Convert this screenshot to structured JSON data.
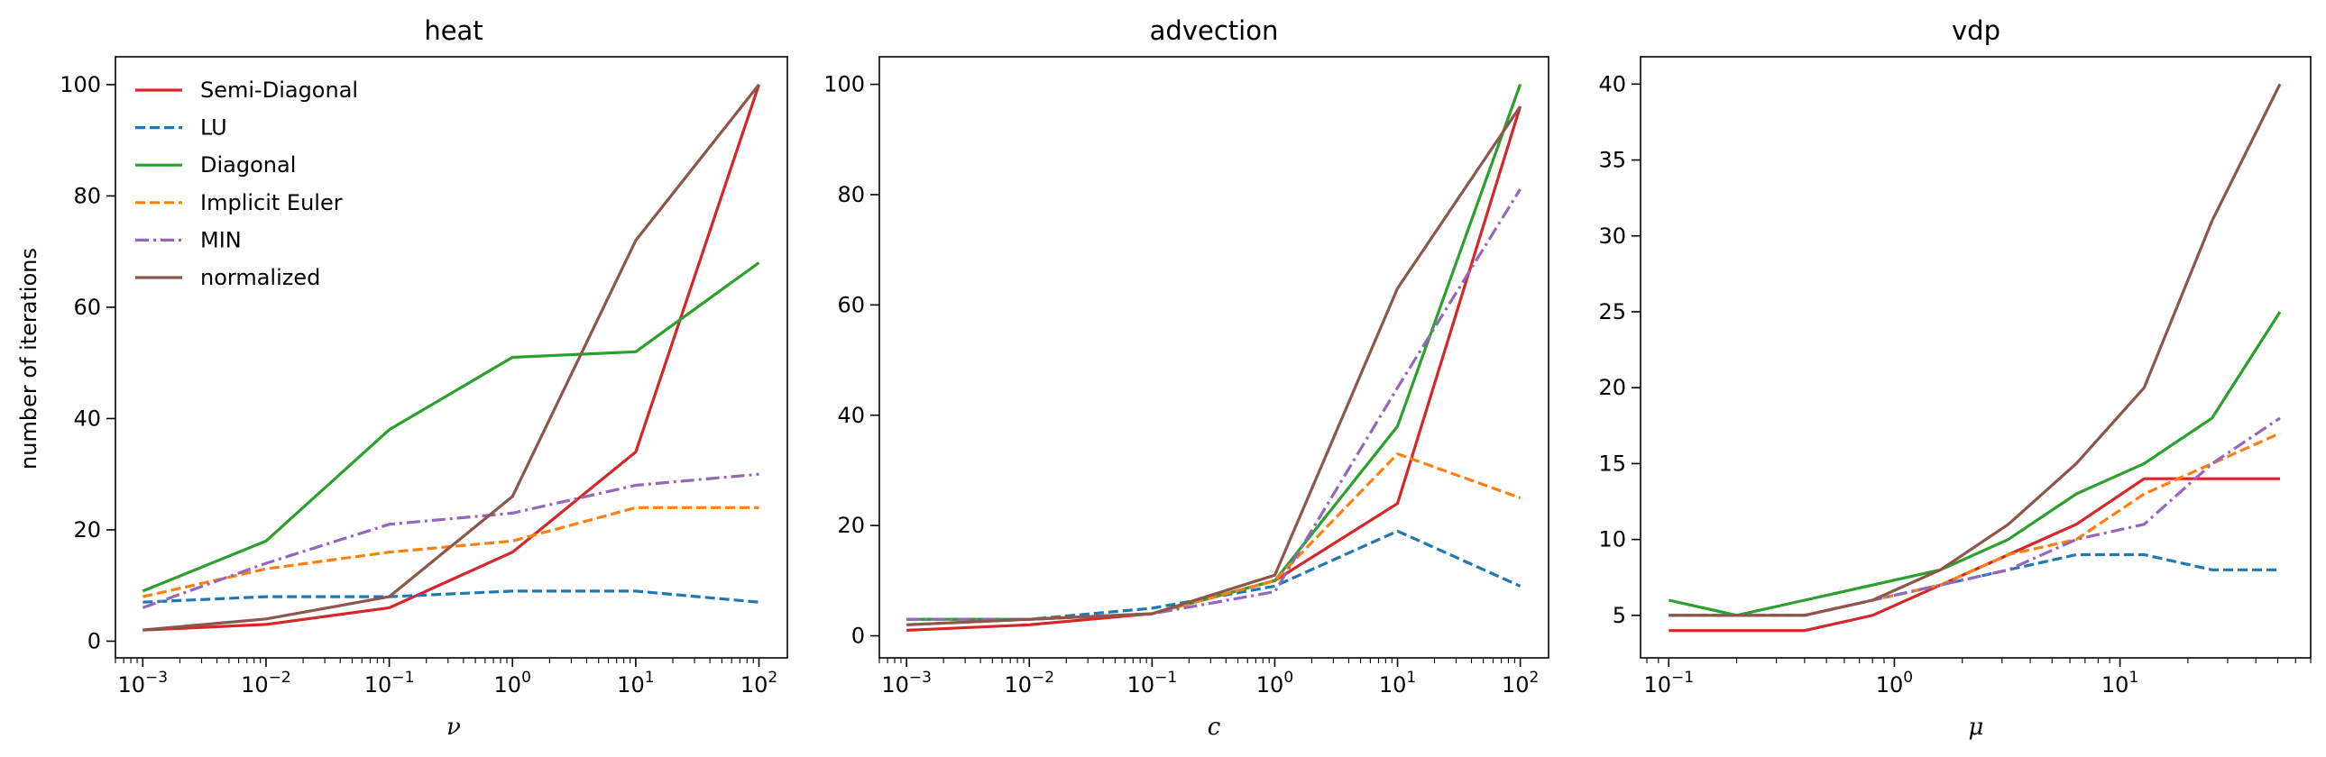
{
  "chart_data": [
    {
      "type": "line",
      "title": "heat",
      "xlabel": "ν",
      "ylabel": "number of iterations",
      "xscale": "log",
      "xlim": [
        0.0006,
        170
      ],
      "ylim": [
        -3,
        105
      ],
      "yticks": [
        0,
        20,
        40,
        60,
        80,
        100
      ],
      "xticks": [
        {
          "value": 0.001,
          "base": "10",
          "exp": "−3"
        },
        {
          "value": 0.01,
          "base": "10",
          "exp": "−2"
        },
        {
          "value": 0.1,
          "base": "10",
          "exp": "−1"
        },
        {
          "value": 1,
          "base": "10",
          "exp": "0"
        },
        {
          "value": 10,
          "base": "10",
          "exp": "1"
        },
        {
          "value": 100,
          "base": "10",
          "exp": "2"
        }
      ],
      "legend": "top-left",
      "grid": false,
      "x": [
        0.001,
        0.01,
        0.1,
        1,
        10,
        100
      ],
      "series": [
        {
          "name": "Semi-Diagonal",
          "color": "#d62728",
          "dash": "solid",
          "values": [
            2,
            3,
            6,
            16,
            34,
            100
          ]
        },
        {
          "name": "LU",
          "color": "#1f77b4",
          "dash": "dashed",
          "values": [
            7,
            8,
            8,
            9,
            9,
            7
          ]
        },
        {
          "name": "Diagonal",
          "color": "#2ca02c",
          "dash": "solid",
          "values": [
            9,
            18,
            38,
            51,
            52,
            68
          ]
        },
        {
          "name": "Implicit Euler",
          "color": "#ff7f0e",
          "dash": "dashed",
          "values": [
            8,
            13,
            16,
            18,
            24,
            24
          ]
        },
        {
          "name": "MIN",
          "color": "#9467bd",
          "dash": "dashdot",
          "values": [
            6,
            14,
            21,
            23,
            28,
            30
          ]
        },
        {
          "name": "normalized",
          "color": "#8c564b",
          "dash": "solid",
          "values": [
            2,
            4,
            8,
            26,
            72,
            100
          ]
        }
      ]
    },
    {
      "type": "line",
      "title": "advection",
      "xlabel": "c",
      "ylabel": "",
      "xscale": "log",
      "xlim": [
        0.0006,
        170
      ],
      "ylim": [
        -4,
        105
      ],
      "yticks": [
        0,
        20,
        40,
        60,
        80,
        100
      ],
      "xticks": [
        {
          "value": 0.001,
          "base": "10",
          "exp": "−3"
        },
        {
          "value": 0.01,
          "base": "10",
          "exp": "−2"
        },
        {
          "value": 0.1,
          "base": "10",
          "exp": "−1"
        },
        {
          "value": 1,
          "base": "10",
          "exp": "0"
        },
        {
          "value": 10,
          "base": "10",
          "exp": "1"
        },
        {
          "value": 100,
          "base": "10",
          "exp": "2"
        }
      ],
      "grid": false,
      "x": [
        0.001,
        0.01,
        0.1,
        1,
        10,
        100
      ],
      "series": [
        {
          "name": "Semi-Diagonal",
          "color": "#d62728",
          "dash": "solid",
          "values": [
            1,
            2,
            4,
            10,
            24,
            96
          ]
        },
        {
          "name": "LU",
          "color": "#1f77b4",
          "dash": "dashed",
          "values": [
            3,
            3,
            5,
            9,
            19,
            9
          ]
        },
        {
          "name": "Diagonal",
          "color": "#2ca02c",
          "dash": "solid",
          "values": [
            3,
            3,
            4,
            10,
            38,
            100
          ]
        },
        {
          "name": "Implicit Euler",
          "color": "#ff7f0e",
          "dash": "dashed",
          "values": [
            2,
            3,
            4,
            10,
            33,
            25
          ]
        },
        {
          "name": "MIN",
          "color": "#9467bd",
          "dash": "dashdot",
          "values": [
            3,
            3,
            4,
            8,
            45,
            81
          ]
        },
        {
          "name": "normalized",
          "color": "#8c564b",
          "dash": "solid",
          "values": [
            2,
            3,
            4,
            11,
            63,
            96
          ]
        }
      ]
    },
    {
      "type": "line",
      "title": "vdp",
      "xlabel": "μ",
      "ylabel": "",
      "xscale": "log",
      "xlim": [
        0.075,
        70
      ],
      "ylim": [
        2.2,
        41.8
      ],
      "yticks": [
        5,
        10,
        15,
        20,
        25,
        30,
        35,
        40
      ],
      "xticks": [
        {
          "value": 0.1,
          "base": "10",
          "exp": "−1"
        },
        {
          "value": 1,
          "base": "10",
          "exp": "0"
        },
        {
          "value": 10,
          "base": "10",
          "exp": "1"
        }
      ],
      "grid": false,
      "x": [
        0.1,
        0.2,
        0.4,
        0.8,
        1.6,
        3.2,
        6.4,
        12.8,
        25.6,
        51.2
      ],
      "series": [
        {
          "name": "Semi-Diagonal",
          "color": "#d62728",
          "dash": "solid",
          "values": [
            4,
            4,
            4,
            5,
            7,
            9,
            11,
            14,
            14,
            14
          ]
        },
        {
          "name": "LU",
          "color": "#1f77b4",
          "dash": "dashed",
          "values": [
            5,
            5,
            5,
            6,
            7,
            8,
            9,
            9,
            8,
            8
          ]
        },
        {
          "name": "Diagonal",
          "color": "#2ca02c",
          "dash": "solid",
          "values": [
            6,
            5,
            6,
            7,
            8,
            10,
            13,
            15,
            18,
            25
          ]
        },
        {
          "name": "Implicit Euler",
          "color": "#ff7f0e",
          "dash": "dashed",
          "values": [
            5,
            5,
            5,
            6,
            7,
            9,
            10,
            13,
            15,
            17
          ]
        },
        {
          "name": "MIN",
          "color": "#9467bd",
          "dash": "dashdot",
          "values": [
            5,
            5,
            5,
            6,
            7,
            8,
            10,
            11,
            15,
            18
          ]
        },
        {
          "name": "normalized",
          "color": "#8c564b",
          "dash": "solid",
          "values": [
            5,
            5,
            5,
            6,
            8,
            11,
            15,
            20,
            31,
            40
          ]
        }
      ]
    }
  ]
}
